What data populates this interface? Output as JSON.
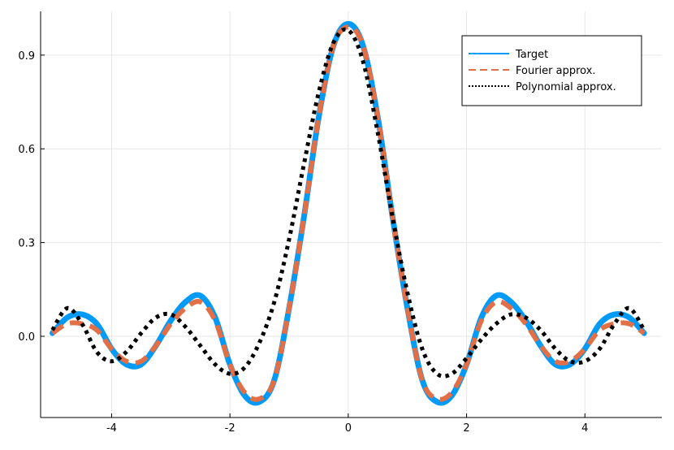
{
  "chart_data": {
    "type": "line",
    "title": "",
    "xlabel": "",
    "ylabel": "",
    "xlim": [
      -5.2,
      5.3
    ],
    "ylim": [
      -0.26,
      1.04
    ],
    "grid": true,
    "legend_position": "top-right",
    "xticks": [
      -4,
      -2,
      0,
      2,
      4
    ],
    "xtick_labels": [
      "-4",
      "-2",
      "0",
      "2",
      "4"
    ],
    "yticks": [
      0.0,
      0.3,
      0.6,
      0.9
    ],
    "ytick_labels": [
      "0.0",
      "0.3",
      "0.6",
      "0.9"
    ],
    "series": [
      {
        "name": "Target",
        "color": "#009af9",
        "style": "solid",
        "x": [
          -5.0,
          -4.75,
          -4.5,
          -4.25,
          -4.0,
          -3.75,
          -3.5,
          -3.25,
          -3.0,
          -2.75,
          -2.5,
          -2.25,
          -2.0,
          -1.75,
          -1.5,
          -1.25,
          -1.0,
          -0.75,
          -0.5,
          -0.25,
          0.0,
          0.25,
          0.5,
          0.75,
          1.0,
          1.25,
          1.5,
          1.75,
          2.0,
          2.25,
          2.5,
          2.75,
          3.0,
          3.25,
          3.5,
          3.75,
          4.0,
          4.25,
          4.5,
          4.75,
          5.0
        ],
        "y": [
          0.01,
          0.06,
          0.07,
          0.04,
          -0.04,
          -0.09,
          -0.09,
          -0.03,
          0.05,
          0.11,
          0.13,
          0.06,
          -0.09,
          -0.19,
          -0.21,
          -0.14,
          0.09,
          0.38,
          0.7,
          0.93,
          1.0,
          0.93,
          0.7,
          0.38,
          0.09,
          -0.14,
          -0.21,
          -0.19,
          -0.09,
          0.06,
          0.13,
          0.11,
          0.05,
          -0.03,
          -0.09,
          -0.09,
          -0.04,
          0.04,
          0.07,
          0.06,
          0.01
        ]
      },
      {
        "name": "Fourier approx.",
        "color": "#e26f46",
        "style": "dashed",
        "x": [
          -5.0,
          -4.75,
          -4.5,
          -4.25,
          -4.0,
          -3.75,
          -3.5,
          -3.25,
          -3.0,
          -2.75,
          -2.5,
          -2.25,
          -2.0,
          -1.75,
          -1.5,
          -1.25,
          -1.0,
          -0.75,
          -0.5,
          -0.25,
          0.0,
          0.25,
          0.5,
          0.75,
          1.0,
          1.25,
          1.5,
          1.75,
          2.0,
          2.25,
          2.5,
          2.75,
          3.0,
          3.25,
          3.5,
          3.75,
          4.0,
          4.25,
          4.5,
          4.75,
          5.0
        ],
        "y": [
          0.01,
          0.04,
          0.04,
          0.02,
          -0.04,
          -0.08,
          -0.08,
          -0.03,
          0.04,
          0.09,
          0.11,
          0.05,
          -0.09,
          -0.18,
          -0.2,
          -0.14,
          0.09,
          0.38,
          0.7,
          0.93,
          0.99,
          0.93,
          0.7,
          0.38,
          0.09,
          -0.14,
          -0.2,
          -0.18,
          -0.09,
          0.05,
          0.11,
          0.09,
          0.04,
          -0.03,
          -0.08,
          -0.08,
          -0.04,
          0.02,
          0.04,
          0.04,
          0.01
        ]
      },
      {
        "name": "Polynomial approx.",
        "color": "#000000",
        "style": "dotted",
        "x": [
          -5.0,
          -4.75,
          -4.5,
          -4.25,
          -4.0,
          -3.75,
          -3.5,
          -3.25,
          -3.0,
          -2.75,
          -2.5,
          -2.25,
          -2.0,
          -1.75,
          -1.5,
          -1.25,
          -1.0,
          -0.75,
          -0.5,
          -0.25,
          0.0,
          0.25,
          0.5,
          0.75,
          1.0,
          1.25,
          1.5,
          1.75,
          2.0,
          2.25,
          2.5,
          2.75,
          3.0,
          3.25,
          3.5,
          3.75,
          4.0,
          4.25,
          4.5,
          4.75,
          5.0
        ],
        "y": [
          0.02,
          0.09,
          0.04,
          -0.05,
          -0.08,
          -0.05,
          0.01,
          0.06,
          0.07,
          0.03,
          -0.03,
          -0.09,
          -0.12,
          -0.1,
          -0.02,
          0.11,
          0.31,
          0.55,
          0.78,
          0.94,
          0.98,
          0.88,
          0.65,
          0.38,
          0.14,
          -0.04,
          -0.12,
          -0.12,
          -0.07,
          -0.01,
          0.04,
          0.07,
          0.06,
          0.02,
          -0.04,
          -0.08,
          -0.08,
          -0.04,
          0.04,
          0.09,
          0.02
        ]
      }
    ]
  }
}
